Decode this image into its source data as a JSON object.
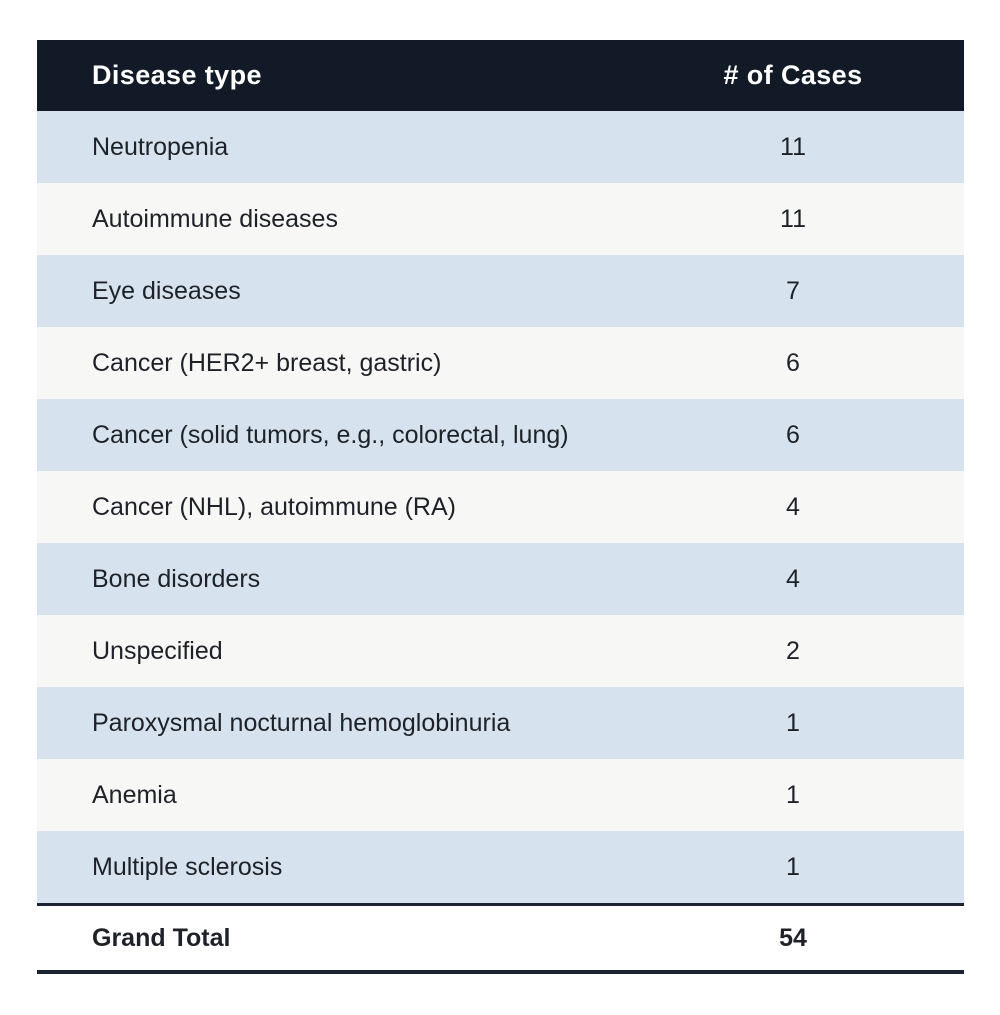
{
  "chart_data": {
    "type": "table",
    "columns": [
      "Disease type",
      "# of Cases"
    ],
    "rows": [
      {
        "disease": "Neutropenia",
        "cases": 11
      },
      {
        "disease": "Autoimmune diseases",
        "cases": 11
      },
      {
        "disease": "Eye diseases",
        "cases": 7
      },
      {
        "disease": "Cancer (HER2+ breast, gastric)",
        "cases": 6
      },
      {
        "disease": "Cancer (solid tumors, e.g., colorectal, lung)",
        "cases": 6
      },
      {
        "disease": "Cancer (NHL), autoimmune (RA)",
        "cases": 4
      },
      {
        "disease": "Bone disorders",
        "cases": 4
      },
      {
        "disease": "Unspecified",
        "cases": 2
      },
      {
        "disease": "Paroxysmal nocturnal hemoglobinuria",
        "cases": 1
      },
      {
        "disease": "Anemia",
        "cases": 1
      },
      {
        "disease": "Multiple sclerosis",
        "cases": 1
      }
    ],
    "grand_total": {
      "label": "Grand Total",
      "value": 54
    },
    "layout": {
      "zebra_striping": true,
      "first_row_stripe": "blue",
      "cases_column_align": "center"
    }
  },
  "colors": {
    "header_bg": "#121A28",
    "header_text": "#FFFFFF",
    "row_blue": "#D6E2ED",
    "row_white": "#F7F7F6",
    "total_border": "#1B2230",
    "body_text": "#1E2228",
    "page_bg": "#FFFFFF"
  }
}
